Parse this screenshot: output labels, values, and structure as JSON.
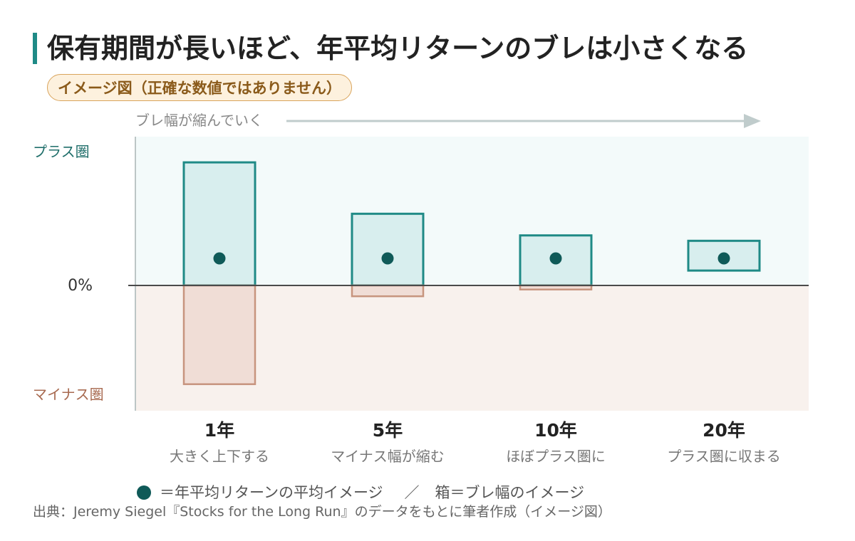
{
  "header": {
    "title": "保有期間が長いほど、年平均リターンのブレは小さくなる",
    "badge": "イメージ図（正確な数値ではありません）"
  },
  "chart_data": {
    "type": "box-range",
    "trend_label": "ブレ幅が縮んでいく",
    "zone_labels": {
      "positive": "プラス圏",
      "negative": "マイナス圏"
    },
    "zero_label": "0%",
    "categories": [
      {
        "label": "1年",
        "sublabel": "大きく上下する",
        "high": 0.91,
        "low": -0.73,
        "mean": 0.2
      },
      {
        "label": "5年",
        "sublabel": "マイナス幅が縮む",
        "high": 0.53,
        "low": -0.08,
        "mean": 0.2
      },
      {
        "label": "10年",
        "sublabel": "ほぼプラス圏に",
        "high": 0.37,
        "low": -0.03,
        "mean": 0.2
      },
      {
        "label": "20年",
        "sublabel": "プラス圏に収まる",
        "high": 0.33,
        "low": 0.11,
        "mean": 0.2
      }
    ],
    "ylim": [
      -0.92,
      1.1
    ],
    "colors": {
      "positive_bg": "#f3fafa",
      "negative_bg": "#f8f1ed",
      "positive_box_fill": "#d8eeee",
      "positive_box_stroke": "#1f8a86",
      "negative_box_fill": "#f0ddd6",
      "negative_box_stroke": "#c7947e",
      "mean_dot": "#0f5a58",
      "axis": "#4a4a4a",
      "trend_arrow": "#c0cccc",
      "title_accent": "#1f8a86",
      "positive_text": "#1f6e6a",
      "negative_text": "#a86a50"
    }
  },
  "legend": {
    "mean_text": "＝年平均リターンの平均イメージ",
    "separator": "／",
    "box_text": "箱＝ブレ幅のイメージ"
  },
  "source": "出典：Jeremy Siegel『Stocks for the Long Run』のデータをもとに筆者作成（イメージ図）"
}
